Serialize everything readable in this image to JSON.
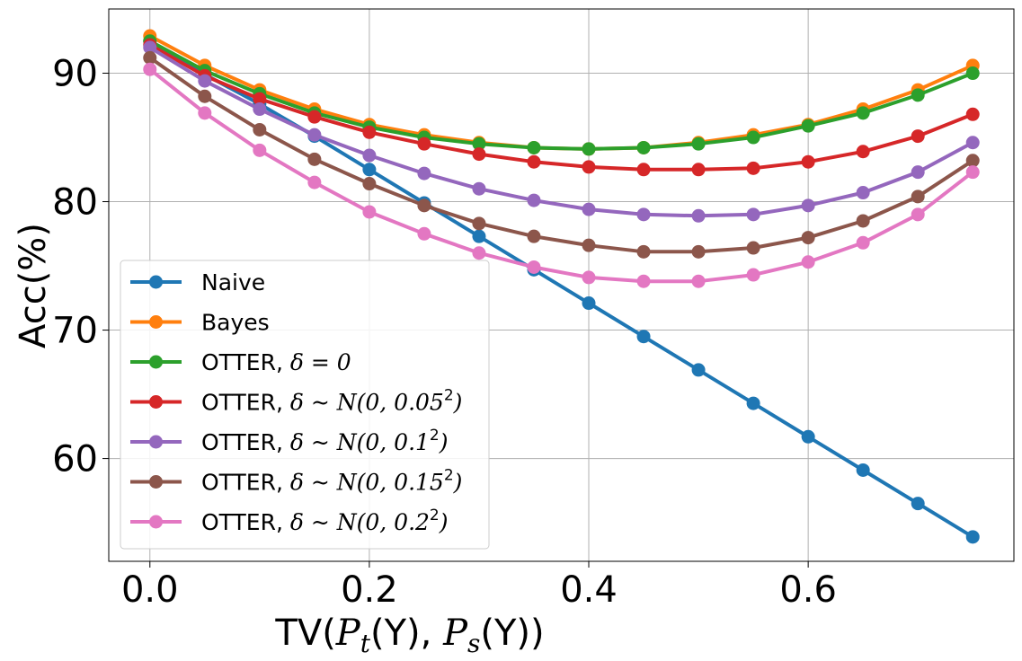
{
  "chart_data": {
    "type": "line",
    "title": "",
    "xlabel": {
      "pre": "TV(",
      "p1": "P",
      "s1": "t",
      "m1": "(Y), ",
      "p2": "P",
      "s2": "s",
      "m2": "(Y))"
    },
    "ylabel": "Acc(%)",
    "xlim": [
      -0.0375,
      0.7875
    ],
    "ylim": [
      52,
      95
    ],
    "xticks": [
      0.0,
      0.2,
      0.4,
      0.6
    ],
    "xtick_labels": [
      "0.0",
      "0.2",
      "0.4",
      "0.6"
    ],
    "yticks": [
      60,
      70,
      80,
      90
    ],
    "ytick_labels": [
      "60",
      "70",
      "80",
      "90"
    ],
    "grid": true,
    "legend_position": "lower-left",
    "x": [
      0.0,
      0.05,
      0.1,
      0.15,
      0.2,
      0.25,
      0.3,
      0.35,
      0.4,
      0.45,
      0.5,
      0.55,
      0.6,
      0.65,
      0.7,
      0.75
    ],
    "series": [
      {
        "name": "Naive",
        "color": "#1f77b4",
        "values": [
          92.5,
          89.9,
          87.6,
          85.1,
          82.5,
          79.9,
          77.3,
          74.7,
          72.1,
          69.5,
          66.9,
          64.3,
          61.7,
          59.1,
          56.5,
          53.9
        ]
      },
      {
        "name": "Bayes",
        "color": "#ff7f0e",
        "values": [
          92.9,
          90.6,
          88.7,
          87.2,
          86.0,
          85.2,
          84.6,
          84.2,
          84.1,
          84.2,
          84.6,
          85.2,
          86.0,
          87.2,
          88.7,
          90.6
        ]
      },
      {
        "name": "OTTER, δ = 0",
        "name_parts": {
          "pre": "OTTER, ",
          "math": "δ = 0",
          "sup": ""
        },
        "color": "#2ca02c",
        "values": [
          92.5,
          90.2,
          88.4,
          86.9,
          85.8,
          85.0,
          84.5,
          84.2,
          84.1,
          84.2,
          84.5,
          85.0,
          85.9,
          86.9,
          88.3,
          90.0
        ]
      },
      {
        "name": "OTTER, δ ~ N(0, 0.05²)",
        "name_parts": {
          "pre": "OTTER, ",
          "math": "δ ~ N(0, 0.05",
          "sup": "2",
          "post": ")"
        },
        "color": "#d62728",
        "values": [
          92.2,
          89.8,
          88.0,
          86.6,
          85.4,
          84.5,
          83.7,
          83.1,
          82.7,
          82.5,
          82.5,
          82.6,
          83.1,
          83.9,
          85.1,
          86.8
        ]
      },
      {
        "name": "OTTER, δ ~ N(0, 0.1²)",
        "name_parts": {
          "pre": "OTTER, ",
          "math": "δ ~ N(0, 0.1",
          "sup": "2",
          "post": ")"
        },
        "color": "#9467bd",
        "values": [
          92.0,
          89.4,
          87.2,
          85.2,
          83.6,
          82.2,
          81.0,
          80.1,
          79.4,
          79.0,
          78.9,
          79.0,
          79.7,
          80.7,
          82.3,
          84.6
        ]
      },
      {
        "name": "OTTER, δ ~ N(0, 0.15²)",
        "name_parts": {
          "pre": "OTTER, ",
          "math": "δ ~ N(0, 0.15",
          "sup": "2",
          "post": ")"
        },
        "color": "#8c564b",
        "values": [
          91.2,
          88.2,
          85.6,
          83.3,
          81.4,
          79.7,
          78.3,
          77.3,
          76.6,
          76.1,
          76.1,
          76.4,
          77.2,
          78.5,
          80.4,
          83.2
        ]
      },
      {
        "name": "OTTER, δ ~ N(0, 0.2²)",
        "name_parts": {
          "pre": "OTTER, ",
          "math": "δ ~ N(0, 0.2",
          "sup": "2",
          "post": ")"
        },
        "color": "#e377c2",
        "values": [
          90.3,
          86.9,
          84.0,
          81.5,
          79.2,
          77.5,
          76.0,
          74.9,
          74.1,
          73.8,
          73.8,
          74.3,
          75.3,
          76.8,
          79.0,
          82.3
        ]
      }
    ]
  }
}
